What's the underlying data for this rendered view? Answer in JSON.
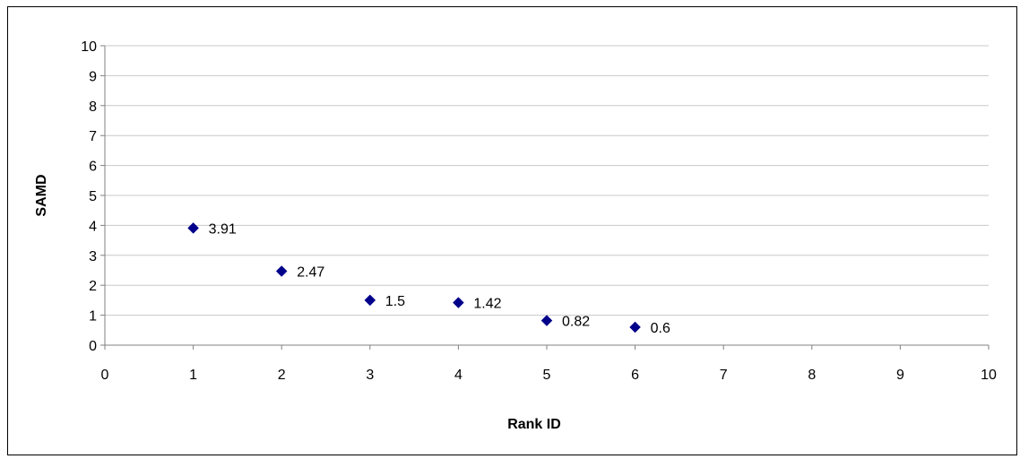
{
  "chart_data": {
    "type": "scatter",
    "title": "",
    "xlabel": "Rank ID",
    "ylabel": "SAMD",
    "xlim": [
      0,
      10
    ],
    "ylim": [
      0,
      10
    ],
    "xticks": [
      "0",
      "1",
      "2",
      "3",
      "4",
      "5",
      "6",
      "7",
      "8",
      "9",
      "10"
    ],
    "yticks": [
      "0",
      "1",
      "2",
      "3",
      "4",
      "5",
      "6",
      "7",
      "8",
      "9",
      "10"
    ],
    "grid": "horizontal",
    "legend": "none",
    "marker": "diamond",
    "marker_color": "#00008b",
    "series": [
      {
        "x": [
          1,
          2,
          3,
          4,
          5,
          6
        ],
        "values": [
          3.91,
          2.47,
          1.5,
          1.42,
          0.82,
          0.6
        ],
        "labels": [
          "3.91",
          "2.47",
          "1.5",
          "1.42",
          "0.82",
          "0.6"
        ]
      }
    ]
  }
}
